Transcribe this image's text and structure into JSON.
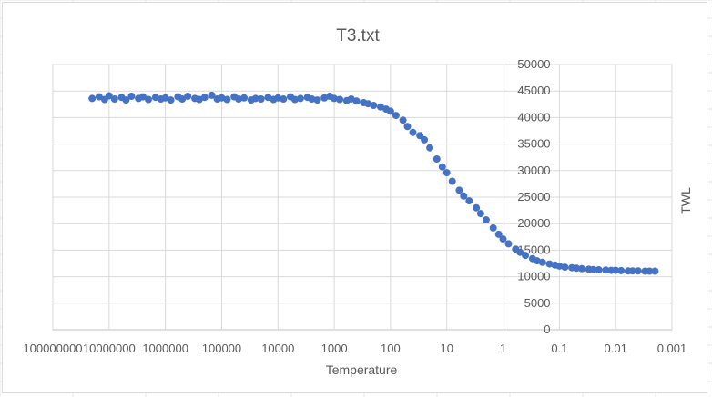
{
  "chart_data": {
    "type": "scatter",
    "title": "T3.txt",
    "xlabel": "Temperature",
    "ylabel": "TWL",
    "x_scale": "log",
    "x_reversed": true,
    "xlim": [
      100000000,
      0.001
    ],
    "ylim": [
      0,
      50000
    ],
    "y_ticks": [
      0,
      5000,
      10000,
      15000,
      20000,
      25000,
      30000,
      35000,
      40000,
      45000,
      50000
    ],
    "y_tick_labels": [
      "0",
      "5000",
      "10000",
      "15000",
      "20000",
      "25000",
      "30000",
      "35000",
      "40000",
      "45000",
      "50000"
    ],
    "x_ticks": [
      100000000,
      10000000,
      1000000,
      100000,
      10000,
      1000,
      100,
      10,
      1,
      0.1,
      0.01,
      0.001
    ],
    "x_tick_labels": [
      "100000000",
      "10000000",
      "1000000",
      "100000",
      "10000",
      "1000",
      "100",
      "10",
      "1",
      "0.1",
      "0.01",
      "0.001"
    ],
    "grid": true,
    "legend": "none",
    "marker_color": "#4472c4",
    "series": [
      {
        "points": [
          [
            20000000,
            43600
          ],
          [
            15000000,
            43900
          ],
          [
            12000000,
            43400
          ],
          [
            10000000,
            44100
          ],
          [
            8000000,
            43500
          ],
          [
            6000000,
            43800
          ],
          [
            5000000,
            43300
          ],
          [
            4000000,
            44000
          ],
          [
            3000000,
            43600
          ],
          [
            2500000,
            43900
          ],
          [
            2000000,
            43400
          ],
          [
            1500000,
            43800
          ],
          [
            1200000,
            43500
          ],
          [
            1000000,
            43700
          ],
          [
            800000,
            43300
          ],
          [
            600000,
            43900
          ],
          [
            500000,
            43500
          ],
          [
            400000,
            44000
          ],
          [
            300000,
            43600
          ],
          [
            250000,
            43400
          ],
          [
            200000,
            43800
          ],
          [
            150000,
            44200
          ],
          [
            120000,
            43500
          ],
          [
            100000,
            43700
          ],
          [
            80000,
            43400
          ],
          [
            60000,
            43900
          ],
          [
            50000,
            43500
          ],
          [
            40000,
            43700
          ],
          [
            30000,
            43300
          ],
          [
            25000,
            43600
          ],
          [
            20000,
            43500
          ],
          [
            15000,
            43800
          ],
          [
            12000,
            43400
          ],
          [
            10000,
            43700
          ],
          [
            8000,
            43500
          ],
          [
            6000,
            43900
          ],
          [
            5000,
            43400
          ],
          [
            4000,
            43600
          ],
          [
            3000,
            43800
          ],
          [
            2500,
            43500
          ],
          [
            2000,
            43300
          ],
          [
            1500,
            43700
          ],
          [
            1200,
            44000
          ],
          [
            1000,
            43600
          ],
          [
            800,
            43400
          ],
          [
            600,
            43200
          ],
          [
            500,
            43500
          ],
          [
            400,
            43100
          ],
          [
            300,
            42800
          ],
          [
            250,
            42600
          ],
          [
            200,
            42300
          ],
          [
            150,
            42000
          ],
          [
            120,
            41600
          ],
          [
            100,
            41200
          ],
          [
            80,
            40400
          ],
          [
            60,
            39500
          ],
          [
            50,
            38300
          ],
          [
            40,
            37200
          ],
          [
            30,
            36600
          ],
          [
            25,
            35800
          ],
          [
            20,
            34300
          ],
          [
            15,
            32200
          ],
          [
            12,
            30700
          ],
          [
            10,
            29600
          ],
          [
            8,
            28000
          ],
          [
            6,
            26300
          ],
          [
            5,
            25200
          ],
          [
            4,
            24300
          ],
          [
            3,
            23000
          ],
          [
            2.5,
            21900
          ],
          [
            2,
            20700
          ],
          [
            1.5,
            19200
          ],
          [
            1.2,
            18000
          ],
          [
            1,
            17100
          ],
          [
            0.8,
            16200
          ],
          [
            0.6,
            15200
          ],
          [
            0.5,
            14600
          ],
          [
            0.4,
            14000
          ],
          [
            0.3,
            13400
          ],
          [
            0.25,
            13000
          ],
          [
            0.2,
            12700
          ],
          [
            0.15,
            12400
          ],
          [
            0.12,
            12200
          ],
          [
            0.1,
            12000
          ],
          [
            0.08,
            11800
          ],
          [
            0.06,
            11700
          ],
          [
            0.05,
            11600
          ],
          [
            0.04,
            11500
          ],
          [
            0.03,
            11400
          ],
          [
            0.025,
            11350
          ],
          [
            0.02,
            11300
          ],
          [
            0.015,
            11250
          ],
          [
            0.012,
            11200
          ],
          [
            0.01,
            11200
          ],
          [
            0.008,
            11150
          ],
          [
            0.006,
            11100
          ],
          [
            0.005,
            11100
          ],
          [
            0.004,
            11100
          ],
          [
            0.003,
            11050
          ],
          [
            0.0025,
            11050
          ],
          [
            0.002,
            11050
          ]
        ]
      }
    ]
  }
}
